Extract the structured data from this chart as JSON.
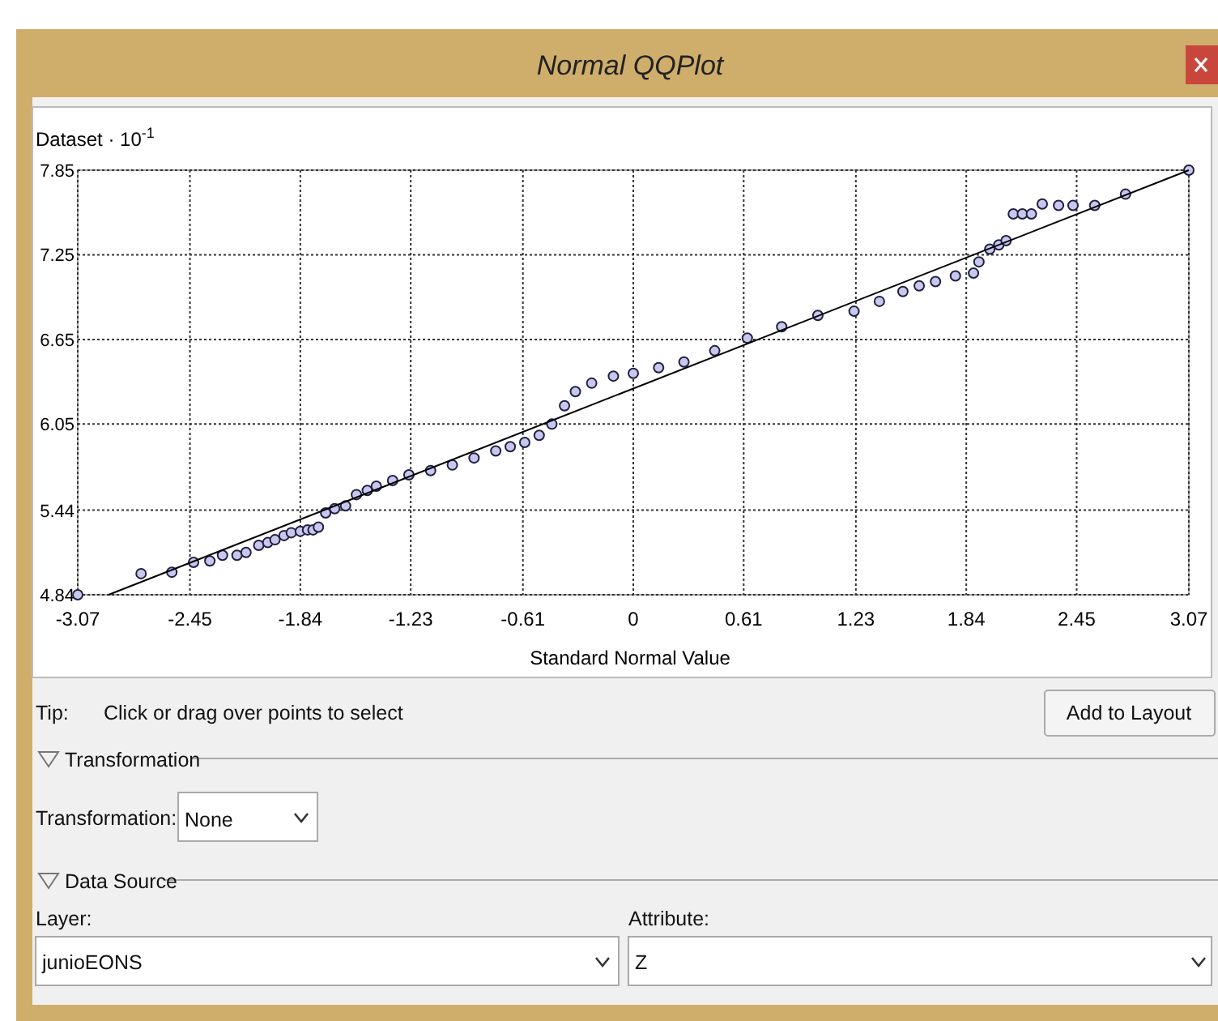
{
  "chart_data": {
    "type": "scatter",
    "title": "Normal QQPlot",
    "xlabel": "Standard Normal Value",
    "ylabel": "Dataset · 10$^{-1}$",
    "xlim": [
      -3.07,
      3.07
    ],
    "xticks": [
      -3.07,
      -2.45,
      -1.84,
      -1.23,
      -0.61,
      0,
      0.61,
      1.23,
      1.84,
      2.45,
      3.07
    ],
    "ylim": [
      4.84,
      7.85
    ],
    "yticks": [
      4.84,
      5.44,
      6.05,
      6.65,
      7.25,
      7.85
    ],
    "grid": true,
    "series": [
      {
        "type": "scatter",
        "color": "#c8c8ee",
        "marker": "circle",
        "x": [
          -3.07,
          -2.72,
          -2.55,
          -2.43,
          -2.34,
          -2.27,
          -2.19,
          -2.14,
          -2.07,
          -2.02,
          -1.98,
          -1.93,
          -1.89,
          -1.84,
          -1.8,
          -1.77,
          -1.74,
          -1.7,
          -1.65,
          -1.59,
          -1.53,
          -1.47,
          -1.42,
          -1.33,
          -1.24,
          -1.12,
          -1.0,
          -0.88,
          -0.76,
          -0.68,
          -0.6,
          -0.52,
          -0.45,
          -0.38,
          -0.32,
          -0.23,
          -0.11,
          0.0,
          0.14,
          0.28,
          0.45,
          0.63,
          0.82,
          1.02,
          1.22,
          1.36,
          1.49,
          1.58,
          1.67,
          1.78,
          1.88,
          1.91,
          1.97,
          2.02,
          2.06,
          2.1,
          2.15,
          2.2,
          2.26,
          2.35,
          2.43,
          2.55,
          2.72,
          3.07
        ],
        "values": [
          4.84,
          4.99,
          5.0,
          5.07,
          5.08,
          5.12,
          5.12,
          5.14,
          5.19,
          5.21,
          5.23,
          5.26,
          5.28,
          5.29,
          5.3,
          5.3,
          5.32,
          5.42,
          5.45,
          5.47,
          5.55,
          5.58,
          5.61,
          5.65,
          5.69,
          5.72,
          5.76,
          5.81,
          5.86,
          5.89,
          5.92,
          5.97,
          6.05,
          6.18,
          6.28,
          6.34,
          6.39,
          6.41,
          6.45,
          6.49,
          6.57,
          6.66,
          6.74,
          6.82,
          6.85,
          6.92,
          6.99,
          7.03,
          7.06,
          7.1,
          7.12,
          7.2,
          7.29,
          7.32,
          7.35,
          7.54,
          7.54,
          7.54,
          7.61,
          7.6,
          7.6,
          7.6,
          7.68,
          7.85
        ]
      },
      {
        "type": "line",
        "color": "#000000",
        "marker": "none",
        "line_style": "solid",
        "x": [
          -2.9,
          3.07
        ],
        "values": [
          4.84,
          7.85
        ]
      }
    ],
    "annotations": [
      "Tip:",
      "Click or drag over points to select",
      "Add to Layout",
      "Transformation",
      "Transformation:",
      "None",
      "Data Source",
      "Layer:",
      "junioEONS",
      "Attribute:",
      "Z"
    ]
  }
}
